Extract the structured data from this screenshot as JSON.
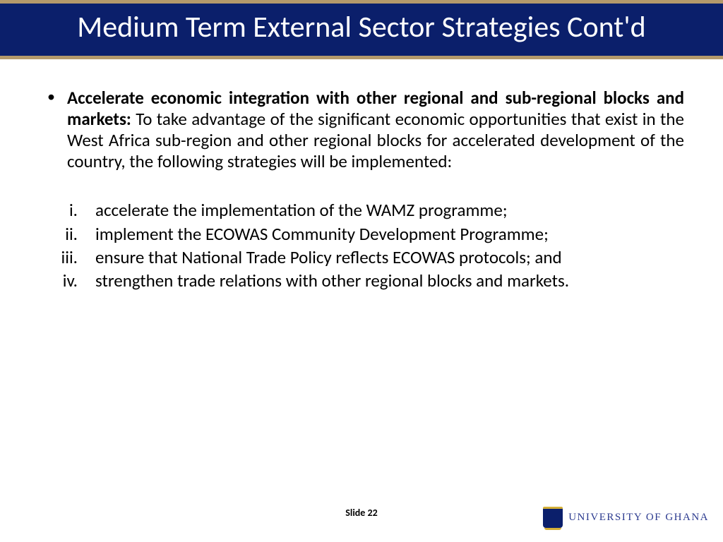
{
  "colors": {
    "title_bg": "#0b1f6b",
    "gold_border": "#b4996b",
    "title_text": "#ffffff",
    "body_text": "#000000",
    "org_text": "#2b3a8f",
    "page_bg": "#ffffff"
  },
  "typography": {
    "title_fontsize": 42,
    "body_fontsize": 25,
    "slide_num_fontsize": 14,
    "org_fontsize": 15,
    "font_family": "Calibri"
  },
  "title": "Medium Term External Sector Strategies Cont'd",
  "intro": {
    "bold": "Accelerate economic integration with other regional and sub-regional blocks and markets:",
    "rest": " To take advantage of the significant economic opportunities that exist in the West Africa sub-region and other regional blocks for accelerated development of the country, the following strategies will be implemented:"
  },
  "items": [
    {
      "num": "i.",
      "text": "accelerate the implementation of the WAMZ programme;"
    },
    {
      "num": "ii.",
      "text": "implement the ECOWAS Community Development Programme;"
    },
    {
      "num": "iii.",
      "text": "ensure that National Trade Policy reflects ECOWAS protocols; and"
    },
    {
      "num": "iv.",
      "text": "strengthen trade relations with other regional blocks and markets."
    }
  ],
  "slide_label": "Slide 22",
  "org_name": "UNIVERSITY OF GHANA"
}
